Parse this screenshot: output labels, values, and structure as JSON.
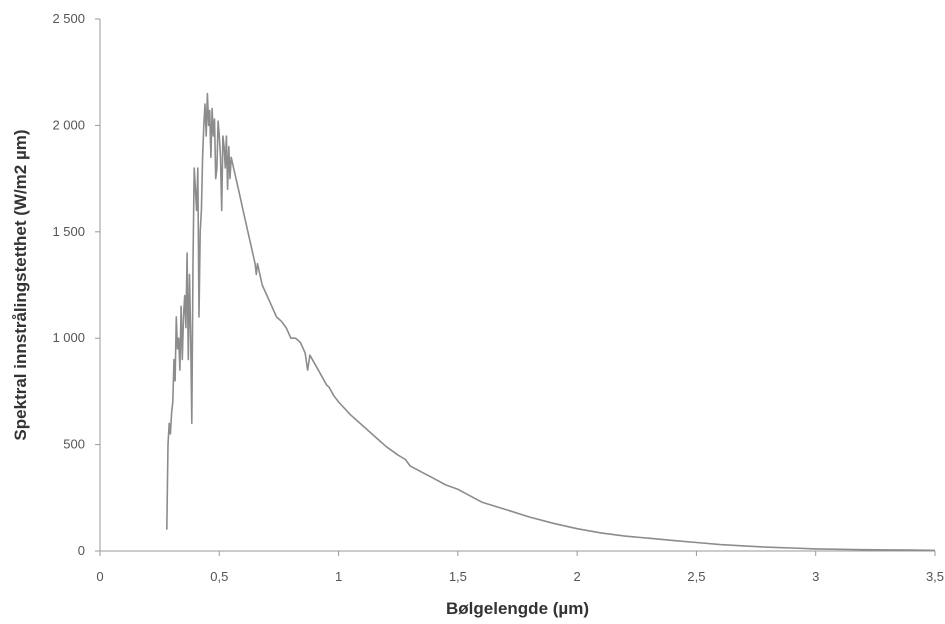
{
  "chart_data": {
    "type": "line",
    "title": "",
    "xlabel": "Bølgelengde (µm)",
    "ylabel": "Spektral innstrålingstetthet (W/m2 µm)",
    "xlim": [
      0,
      3.5
    ],
    "ylim": [
      0,
      2500
    ],
    "grid": false,
    "legend": "none",
    "x_ticks": [
      0,
      0.5,
      1,
      1.5,
      2,
      2.5,
      3,
      3.5
    ],
    "x_tick_labels": [
      "0",
      "0,5",
      "1",
      "1,5",
      "2",
      "2,5",
      "3",
      "3,5"
    ],
    "y_ticks": [
      0,
      500,
      1000,
      1500,
      2000,
      2500
    ],
    "y_tick_labels": [
      "0",
      "500",
      "1 000",
      "1 500",
      "2 000",
      "2 500"
    ],
    "series": [
      {
        "color": "#8c8c8c",
        "x": [
          0.28,
          0.285,
          0.29,
          0.295,
          0.3,
          0.305,
          0.31,
          0.315,
          0.32,
          0.325,
          0.33,
          0.335,
          0.34,
          0.345,
          0.35,
          0.355,
          0.36,
          0.365,
          0.37,
          0.375,
          0.38,
          0.385,
          0.39,
          0.395,
          0.4,
          0.405,
          0.41,
          0.415,
          0.42,
          0.425,
          0.43,
          0.435,
          0.44,
          0.445,
          0.45,
          0.455,
          0.46,
          0.465,
          0.47,
          0.475,
          0.48,
          0.485,
          0.49,
          0.495,
          0.5,
          0.505,
          0.51,
          0.515,
          0.52,
          0.525,
          0.53,
          0.535,
          0.54,
          0.545,
          0.55,
          0.56,
          0.57,
          0.58,
          0.59,
          0.6,
          0.62,
          0.64,
          0.65,
          0.655,
          0.66,
          0.68,
          0.7,
          0.72,
          0.74,
          0.76,
          0.78,
          0.8,
          0.82,
          0.84,
          0.86,
          0.87,
          0.88,
          0.9,
          0.92,
          0.94,
          0.95,
          0.96,
          0.98,
          1.0,
          1.05,
          1.1,
          1.15,
          1.2,
          1.25,
          1.28,
          1.3,
          1.35,
          1.4,
          1.45,
          1.5,
          1.55,
          1.6,
          1.7,
          1.8,
          1.9,
          2.0,
          2.1,
          2.2,
          2.3,
          2.4,
          2.5,
          2.6,
          2.7,
          2.8,
          2.9,
          3.0,
          3.1,
          3.2,
          3.3,
          3.4,
          3.5
        ],
        "y": [
          100,
          500,
          600,
          550,
          650,
          700,
          900,
          800,
          1100,
          950,
          1000,
          850,
          1150,
          900,
          1100,
          1200,
          1050,
          1400,
          900,
          1300,
          1000,
          600,
          1350,
          1800,
          1700,
          1600,
          1800,
          1100,
          1500,
          1600,
          1850,
          2000,
          2100,
          1950,
          2150,
          2000,
          2070,
          1850,
          2080,
          1950,
          2030,
          1750,
          1800,
          2020,
          1950,
          1850,
          1600,
          1950,
          1900,
          1800,
          1950,
          1700,
          1900,
          1750,
          1850,
          1800,
          1750,
          1700,
          1650,
          1600,
          1500,
          1400,
          1350,
          1300,
          1350,
          1250,
          1200,
          1150,
          1100,
          1080,
          1050,
          1000,
          1000,
          980,
          930,
          850,
          920,
          880,
          840,
          800,
          780,
          770,
          730,
          700,
          640,
          590,
          540,
          490,
          450,
          430,
          400,
          370,
          340,
          310,
          290,
          260,
          230,
          195,
          160,
          130,
          105,
          85,
          70,
          60,
          50,
          40,
          30,
          24,
          18,
          14,
          10,
          8,
          6,
          5,
          4,
          3
        ]
      }
    ]
  }
}
